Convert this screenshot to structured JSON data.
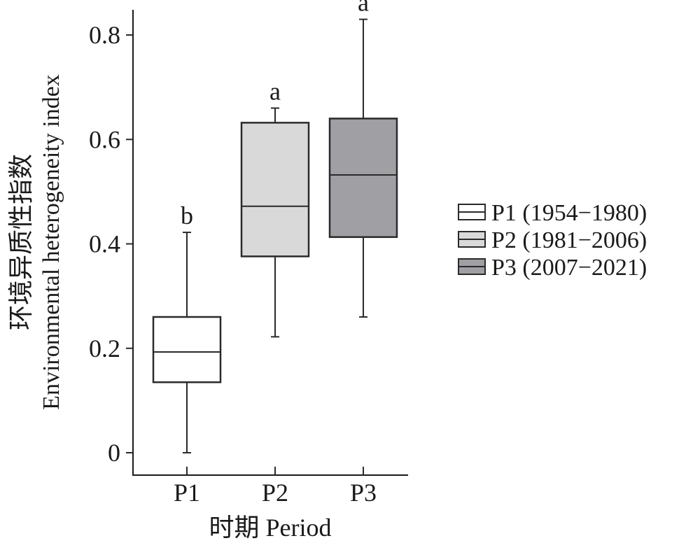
{
  "chart_data": {
    "type": "boxplot",
    "categories": [
      "P1",
      "P2",
      "P3"
    ],
    "xlabel": "时期 Period",
    "ylabel_cn": "环境异质性指数",
    "ylabel_en": "Environmental heterogeneity index",
    "ylim": [
      -0.04,
      0.86
    ],
    "yticks": [
      0,
      0.2,
      0.4,
      0.6,
      0.8
    ],
    "ytick_labels": [
      "0",
      "0.2",
      "0.4",
      "0.6",
      "0.8"
    ],
    "series": [
      {
        "name": "P1 (1954−1980)",
        "category": "P1",
        "min": 0.0,
        "q1": 0.135,
        "median": 0.193,
        "q3": 0.26,
        "max": 0.422,
        "sig_letter": "b",
        "color": "#ffffff"
      },
      {
        "name": "P2 (1981−2006)",
        "category": "P2",
        "min": 0.222,
        "q1": 0.376,
        "median": 0.472,
        "q3": 0.632,
        "max": 0.66,
        "sig_letter": "a",
        "color": "#d9d9d9"
      },
      {
        "name": "P3 (2007−2021)",
        "category": "P3",
        "min": 0.26,
        "q1": 0.413,
        "median": 0.532,
        "q3": 0.64,
        "max": 0.83,
        "sig_letter": "a",
        "color": "#a09fa4"
      }
    ],
    "legend_position": "right",
    "grid": false
  }
}
